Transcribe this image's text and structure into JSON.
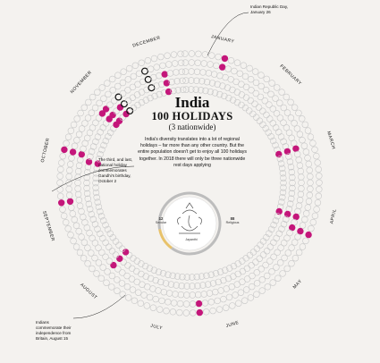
{
  "title": "India",
  "subtitle": "100 HOLIDAYS",
  "subnote": "(3 nationwide)",
  "intro": "India's diversity translates into a lot of regional holidays – far more than any other country. But the entire population doesn't get to enjoy all 100 holidays together. In 2018 there will only be three nationwide rest days applying",
  "months": [
    "JANUARY",
    "FEBRUARY",
    "MARCH",
    "APRIL",
    "MAY",
    "JUNE",
    "JULY",
    "AUGUST",
    "SEPTEMBER",
    "OCTOBER",
    "NOVEMBER",
    "DECEMBER"
  ],
  "annotations": {
    "republic_day": "Indian Republic Day, January 26",
    "gandhi": "The third, and last, national holiday commemorates Gandhi's birthday, October 2",
    "independence": "Indians commemorate their independence from Britain, August 15"
  },
  "legend": {
    "left_value": "12",
    "left_label": "Secular",
    "right_value": "88",
    "right_label": "Religious",
    "bottom_label": "Jayanthi"
  },
  "colors": {
    "religious": "#c4167a",
    "secular": "#111111",
    "nationwide": "#5b8fc9",
    "empty": "#c8c8c8",
    "gold": "#e8c26a",
    "background": "#f4f2ef"
  }
}
